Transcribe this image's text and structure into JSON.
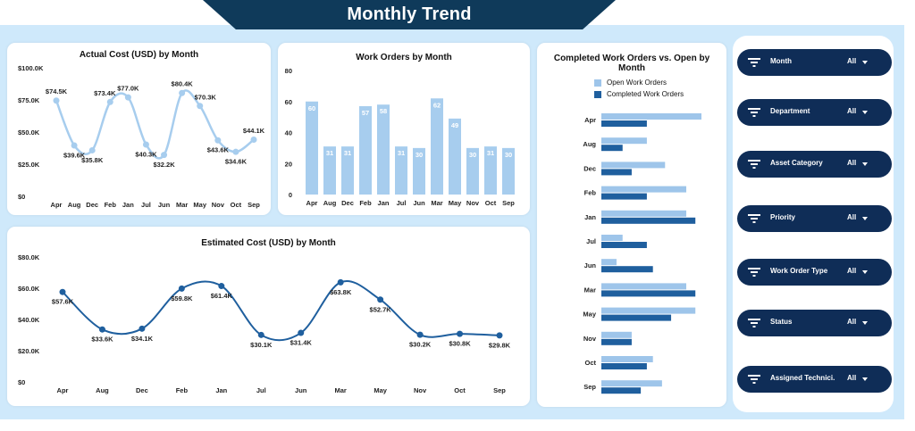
{
  "page": {
    "title": "Monthly Trend"
  },
  "actual_cost": {
    "title": "Actual Cost (USD) by Month",
    "y_ticks": [
      "$100.0K",
      "$75.0K",
      "$50.0K",
      "$25.0K",
      "$0"
    ],
    "labels": [
      "$74.5K",
      "$39.6K",
      "$35.8K",
      "$73.4K",
      "$77.0K",
      "$40.3K",
      "$32.2K",
      "$80.4K",
      "$70.3K",
      "$43.6K",
      "$34.6K",
      "$44.1K"
    ]
  },
  "work_orders": {
    "title": "Work Orders by Month",
    "y_ticks": [
      "80",
      "60",
      "40",
      "20",
      "0"
    ]
  },
  "estimated_cost": {
    "title": "Estimated Cost (USD) by Month",
    "y_ticks": [
      "$80.0K",
      "$60.0K",
      "$40.0K",
      "$20.0K",
      "$0"
    ],
    "labels": [
      "$57.6K",
      "$33.6K",
      "$34.1K",
      "$59.8K",
      "$61.4K",
      "$30.1K",
      "$31.4K",
      "$63.8K",
      "$52.7K",
      "$30.2K",
      "$30.8K",
      "$29.8K"
    ]
  },
  "completed_vs_open": {
    "title_line1": "Completed Work Orders vs. Open by",
    "title_line2": "Month",
    "legend": [
      "Open Work Orders",
      "Completed Work Orders"
    ]
  },
  "colors": {
    "banner": "#0f3a5a",
    "light": "#9ec5ea",
    "dark": "#1f5f9e",
    "navy": "#0f2d57",
    "bg": "#cfe9fb"
  },
  "slicers": [
    {
      "label": "Month",
      "value": "All",
      "icon": "filter-icon"
    },
    {
      "label": "Department",
      "value": "All",
      "icon": "filter-icon"
    },
    {
      "label": "Asset Category",
      "value": "All",
      "icon": "filter-icon"
    },
    {
      "label": "Priority",
      "value": "All",
      "icon": "filter-icon"
    },
    {
      "label": "Work Order Type",
      "value": "All",
      "icon": "filter-icon"
    },
    {
      "label": "Status",
      "value": "All",
      "icon": "filter-icon"
    },
    {
      "label": "Assigned Technici...",
      "value": "All",
      "icon": "filter-icon"
    }
  ],
  "chart_data": [
    {
      "type": "line",
      "title": "Actual Cost (USD) by Month",
      "categories": [
        "Apr",
        "Aug",
        "Dec",
        "Feb",
        "Jan",
        "Jul",
        "Jun",
        "Mar",
        "May",
        "Nov",
        "Oct",
        "Sep"
      ],
      "values": [
        74.5,
        39.6,
        35.8,
        73.4,
        77.0,
        40.3,
        32.2,
        80.4,
        70.3,
        43.6,
        34.6,
        44.1
      ],
      "ylim": [
        0,
        100
      ]
    },
    {
      "type": "bar",
      "title": "Work Orders by Month",
      "categories": [
        "Apr",
        "Aug",
        "Dec",
        "Feb",
        "Jan",
        "Jul",
        "Jun",
        "Mar",
        "May",
        "Nov",
        "Oct",
        "Sep"
      ],
      "values": [
        60,
        31,
        31,
        57,
        58,
        31,
        30,
        62,
        49,
        30,
        31,
        30
      ],
      "ylim": [
        0,
        80
      ]
    },
    {
      "type": "line",
      "title": "Estimated Cost (USD) by Month",
      "categories": [
        "Apr",
        "Aug",
        "Dec",
        "Feb",
        "Jan",
        "Jul",
        "Jun",
        "Mar",
        "May",
        "Nov",
        "Oct",
        "Sep"
      ],
      "values": [
        57.6,
        33.6,
        34.1,
        59.8,
        61.4,
        30.1,
        31.4,
        63.8,
        52.7,
        30.2,
        30.8,
        29.8
      ],
      "ylim": [
        0,
        80
      ]
    },
    {
      "type": "bar",
      "title": "Completed Work Orders vs. Open by Month",
      "categories": [
        "Apr",
        "Aug",
        "Dec",
        "Feb",
        "Jan",
        "Jul",
        "Jun",
        "Mar",
        "May",
        "Nov",
        "Oct",
        "Sep"
      ],
      "series": [
        {
          "name": "Open Work Orders",
          "values": [
            33,
            15,
            21,
            28,
            28,
            7,
            5,
            28,
            31,
            10,
            17,
            20
          ]
        },
        {
          "name": "Completed Work Orders",
          "values": [
            15,
            7,
            10,
            15,
            31,
            15,
            17,
            31,
            23,
            10,
            15,
            13
          ]
        }
      ],
      "legend": "top"
    }
  ]
}
